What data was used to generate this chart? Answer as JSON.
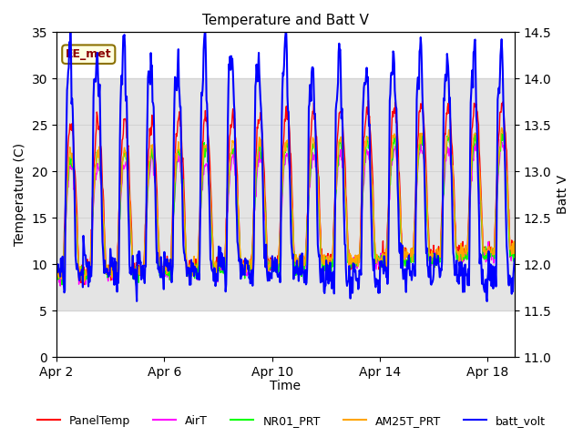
{
  "title": "Temperature and Batt V",
  "xlabel": "Time",
  "ylabel_left": "Temperature (C)",
  "ylabel_right": "Batt V",
  "ylim_left": [
    0,
    35
  ],
  "ylim_right": [
    11.0,
    14.5
  ],
  "yticks_left": [
    0,
    5,
    10,
    15,
    20,
    25,
    30,
    35
  ],
  "yticks_right": [
    11.0,
    11.5,
    12.0,
    12.5,
    13.0,
    13.5,
    14.0,
    14.5
  ],
  "xtick_labels": [
    "Apr 2",
    "Apr 6",
    "Apr 10",
    "Apr 14",
    "Apr 18"
  ],
  "xtick_positions": [
    0,
    4,
    8,
    12,
    16
  ],
  "xlim": [
    0,
    17
  ],
  "legend_labels": [
    "PanelTemp",
    "AirT",
    "NR01_PRT",
    "AM25T_PRT",
    "batt_volt"
  ],
  "legend_colors": [
    "red",
    "magenta",
    "lime",
    "orange",
    "blue"
  ],
  "annotation_text": "EE_met",
  "bg_gray_ymin": 5,
  "bg_gray_ymax": 30,
  "line_colors": [
    "red",
    "magenta",
    "lime",
    "orange",
    "blue"
  ],
  "line_widths": [
    1.0,
    1.0,
    1.0,
    1.0,
    1.5
  ],
  "title_fontsize": 11,
  "axis_fontsize": 10,
  "legend_fontsize": 9
}
